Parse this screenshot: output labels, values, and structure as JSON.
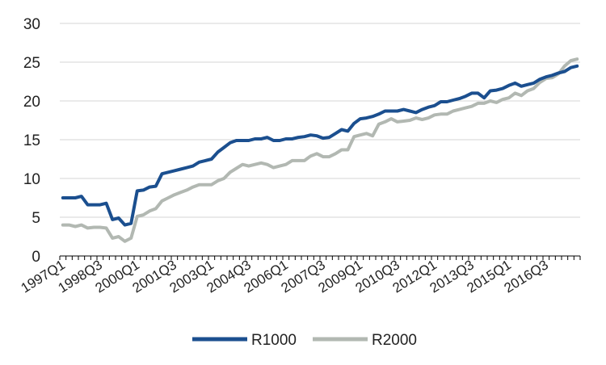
{
  "chart_data": {
    "type": "line",
    "title": "",
    "xlabel": "",
    "ylabel": "",
    "ylim": [
      0,
      30
    ],
    "yticks": [
      0,
      5,
      10,
      15,
      20,
      25,
      30
    ],
    "grid": "horizontal",
    "legend": "bottom",
    "x": [
      "1997Q1",
      "1997Q2",
      "1997Q3",
      "1997Q4",
      "1998Q1",
      "1998Q2",
      "1998Q3",
      "1998Q4",
      "1999Q1",
      "1999Q2",
      "1999Q3",
      "1999Q4",
      "2000Q1",
      "2000Q2",
      "2000Q3",
      "2000Q4",
      "2001Q1",
      "2001Q2",
      "2001Q3",
      "2001Q4",
      "2002Q1",
      "2002Q2",
      "2002Q3",
      "2002Q4",
      "2003Q1",
      "2003Q2",
      "2003Q3",
      "2003Q4",
      "2004Q1",
      "2004Q2",
      "2004Q3",
      "2004Q4",
      "2005Q1",
      "2005Q2",
      "2005Q3",
      "2005Q4",
      "2006Q1",
      "2006Q2",
      "2006Q3",
      "2006Q4",
      "2007Q1",
      "2007Q2",
      "2007Q3",
      "2007Q4",
      "2008Q1",
      "2008Q2",
      "2008Q3",
      "2008Q4",
      "2009Q1",
      "2009Q2",
      "2009Q3",
      "2009Q4",
      "2010Q1",
      "2010Q2",
      "2010Q3",
      "2010Q4",
      "2011Q1",
      "2011Q2",
      "2011Q3",
      "2011Q4",
      "2012Q1",
      "2012Q2",
      "2012Q3",
      "2012Q4",
      "2013Q1",
      "2013Q2",
      "2013Q3",
      "2013Q4",
      "2014Q1",
      "2014Q2",
      "2014Q3",
      "2014Q4",
      "2015Q1",
      "2015Q2",
      "2015Q3",
      "2015Q4",
      "2016Q1",
      "2016Q2",
      "2016Q3",
      "2016Q4",
      "2017Q1",
      "2017Q2",
      "2017Q3",
      "2017Q4"
    ],
    "xtick_labels": [
      "1997Q1",
      "1998Q3",
      "2000Q1",
      "2001Q3",
      "2003Q1",
      "2004Q3",
      "2006Q1",
      "2007Q3",
      "2009Q1",
      "2010Q3",
      "2012Q1",
      "2013Q3",
      "2015Q1",
      "2016Q3"
    ],
    "series": [
      {
        "name": "R1000",
        "color": "#1b4f8f",
        "values": [
          7.5,
          7.5,
          7.5,
          7.7,
          6.6,
          6.6,
          6.6,
          6.8,
          4.7,
          4.9,
          4.0,
          4.2,
          8.4,
          8.5,
          8.9,
          9.0,
          10.6,
          10.8,
          11.0,
          11.2,
          11.4,
          11.6,
          12.1,
          12.3,
          12.5,
          13.4,
          14.0,
          14.6,
          14.9,
          14.9,
          14.9,
          15.1,
          15.1,
          15.3,
          14.9,
          14.9,
          15.1,
          15.1,
          15.3,
          15.4,
          15.6,
          15.5,
          15.2,
          15.3,
          15.8,
          16.3,
          16.1,
          17.1,
          17.7,
          17.8,
          18.0,
          18.3,
          18.7,
          18.7,
          18.7,
          18.9,
          18.7,
          18.5,
          18.9,
          19.2,
          19.4,
          19.9,
          19.9,
          20.1,
          20.3,
          20.6,
          21.0,
          21.0,
          20.4,
          21.3,
          21.4,
          21.6,
          22.0,
          22.3,
          21.9,
          22.1,
          22.3,
          22.8,
          23.1,
          23.3,
          23.6,
          23.8,
          24.3,
          24.5
        ]
      },
      {
        "name": "R2000",
        "color": "#b2b8b2",
        "values": [
          4.0,
          4.0,
          3.8,
          4.0,
          3.6,
          3.7,
          3.7,
          3.6,
          2.3,
          2.5,
          1.9,
          2.3,
          5.1,
          5.3,
          5.8,
          6.1,
          7.1,
          7.5,
          7.9,
          8.2,
          8.5,
          8.9,
          9.2,
          9.2,
          9.2,
          9.7,
          10.0,
          10.8,
          11.3,
          11.8,
          11.6,
          11.8,
          12.0,
          11.8,
          11.4,
          11.6,
          11.8,
          12.3,
          12.3,
          12.3,
          12.9,
          13.2,
          12.8,
          12.8,
          13.2,
          13.7,
          13.7,
          15.4,
          15.6,
          15.8,
          15.5,
          17.0,
          17.3,
          17.7,
          17.3,
          17.4,
          17.5,
          17.8,
          17.6,
          17.8,
          18.2,
          18.3,
          18.3,
          18.7,
          18.9,
          19.1,
          19.3,
          19.7,
          19.7,
          20.0,
          19.8,
          20.2,
          20.4,
          21.0,
          20.7,
          21.3,
          21.6,
          22.4,
          22.9,
          23.0,
          23.5,
          24.5,
          25.2,
          25.4
        ]
      }
    ]
  }
}
